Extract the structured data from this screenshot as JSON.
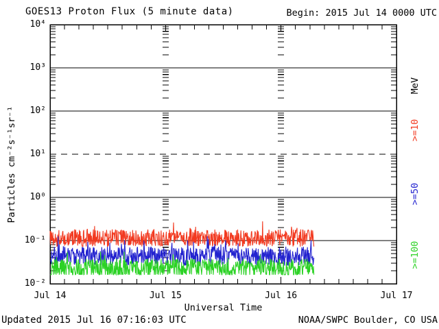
{
  "header": {
    "title": "GOES13 Proton Flux (5 minute data)",
    "begin_label": "Begin: 2015 Jul 14 0000 UTC"
  },
  "footer": {
    "updated": "Updated 2015 Jul 16 07:16:03 UTC",
    "source": "NOAA/SWPC Boulder, CO USA"
  },
  "chart_data": {
    "type": "line",
    "title": "GOES13 Proton Flux (5 minute data)",
    "xlabel": "Universal Time",
    "ylabel": "Particles cm⁻²s⁻¹sr⁻¹",
    "right_axis_unit": "MeV",
    "y_scale": "log",
    "ylim": [
      0.01,
      10000
    ],
    "y_tick_exponents": [
      4,
      3,
      2,
      1,
      0,
      -1,
      -2
    ],
    "y_tick_labels": [
      "10⁴",
      "10³",
      "10²",
      "10¹",
      "10⁰",
      "10⁻¹",
      "10⁻²"
    ],
    "x_range_days": 3,
    "x_tick_labels": [
      "Jul 14",
      "Jul 15",
      "Jul 16",
      "Jul 17"
    ],
    "x_minor_tick_hours": 3,
    "grid": {
      "solid_at": [
        1000,
        100,
        1,
        0.1
      ],
      "dashed_at": [
        10
      ],
      "day_divider_tick_columns_at_days": [
        1,
        2
      ]
    },
    "cadence_minutes": 5,
    "data_end_day_offset": 2.287,
    "series": [
      {
        "name": ">=10",
        "color": "#f2391f",
        "approx_band": [
          0.07,
          0.35
        ],
        "typical": 0.115,
        "sim": {
          "base_log": -0.94,
          "amp": 0.2,
          "spike_prob": 0.05,
          "spike_add": 0.28,
          "min_log": -1.15,
          "max_log": -0.46,
          "seed": 1077
        }
      },
      {
        "name": ">=50",
        "color": "#2222cf",
        "approx_band": [
          0.026,
          0.125
        ],
        "typical": 0.044,
        "sim": {
          "base_log": -1.36,
          "amp": 0.22,
          "spike_prob": 0.05,
          "spike_add": 0.3,
          "min_log": -1.58,
          "max_log": -0.9,
          "seed": 2154
        }
      },
      {
        "name": ">=100",
        "color": "#2bd224",
        "approx_band": [
          0.016,
          0.055
        ],
        "typical": 0.023,
        "sim": {
          "base_log": -1.64,
          "amp": 0.22,
          "spike_prob": 0.04,
          "spike_add": 0.25,
          "min_log": -1.79,
          "max_log": -1.26,
          "seed": 3231
        }
      }
    ],
    "legend_note": "right-side rotated labels colored per series"
  }
}
